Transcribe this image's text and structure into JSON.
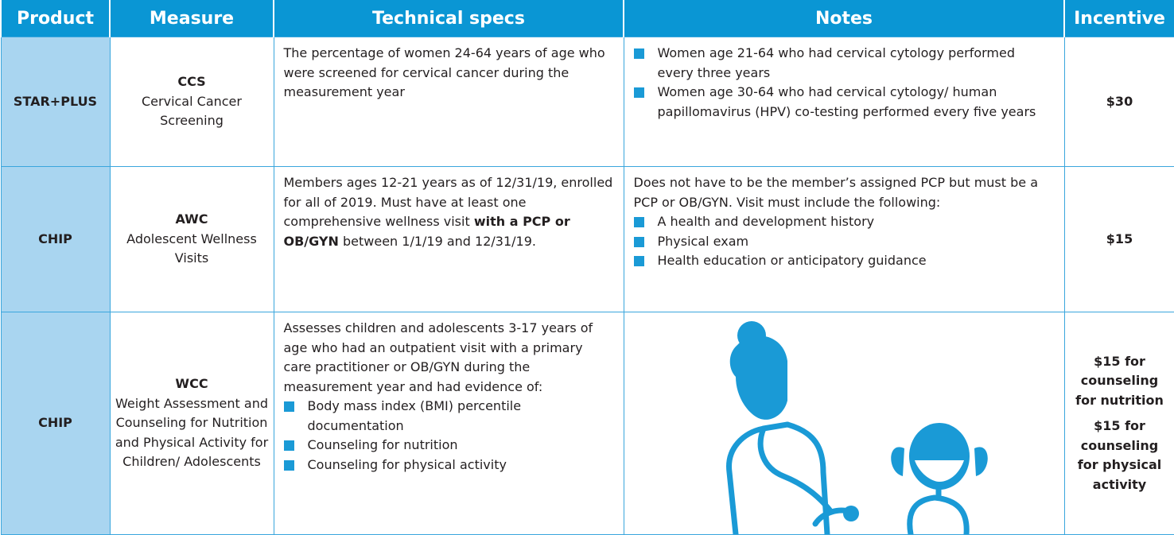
{
  "table": {
    "columns": [
      "Product",
      "Measure",
      "Technical specs",
      "Notes",
      "Incentive"
    ],
    "rows": [
      {
        "product": "STAR+PLUS",
        "measure_code": "CCS",
        "measure_name": "Cervical Cancer Screening",
        "specs": {
          "text": "The percentage of women 24-64 years of age who were screened for cervical cancer during the measurement year"
        },
        "notes": {
          "bullets": [
            "Women age 21-64 who had cervical cytology performed every three years",
            "Women age 30-64 who had cervical cytology/ human papillomavirus (HPV) co-testing performed every five years"
          ]
        },
        "incentive": [
          "$30"
        ]
      },
      {
        "product": "CHIP",
        "measure_code": "AWC",
        "measure_name": "Adolescent Wellness Visits",
        "specs": {
          "text": "Members ages 12-21 years as of 12/31/19, enrolled for all of 2019. Must have at least one comprehensive wellness visit",
          "bold": "with a PCP or OB/GYN",
          "after": "between 1/1/19 and 12/31/19."
        },
        "notes": {
          "text": "Does not have to be the member’s assigned PCP but must be a PCP or OB/GYN. Visit must include the following:",
          "bullets": [
            "A health and development history",
            "Physical exam",
            "Health education or anticipatory guidance"
          ]
        },
        "incentive": [
          "$15"
        ]
      },
      {
        "product": "CHIP",
        "measure_code": "WCC",
        "measure_name": "Weight Assessment and Counseling for Nutrition and Physical Activity for Children/ Adolescents",
        "specs": {
          "text": "Assesses children and adolescents 3-17 years of age who had an outpatient visit with a primary care practitioner or OB/GYN during the measurement year and had evidence of:",
          "bullets": [
            "Body mass index (BMI) percentile documentation",
            "Counseling for nutrition",
            "Counseling for physical activity"
          ]
        },
        "incentive": [
          "$15 for counseling for nutrition",
          "$15 for counseling for physical activity"
        ]
      }
    ]
  }
}
